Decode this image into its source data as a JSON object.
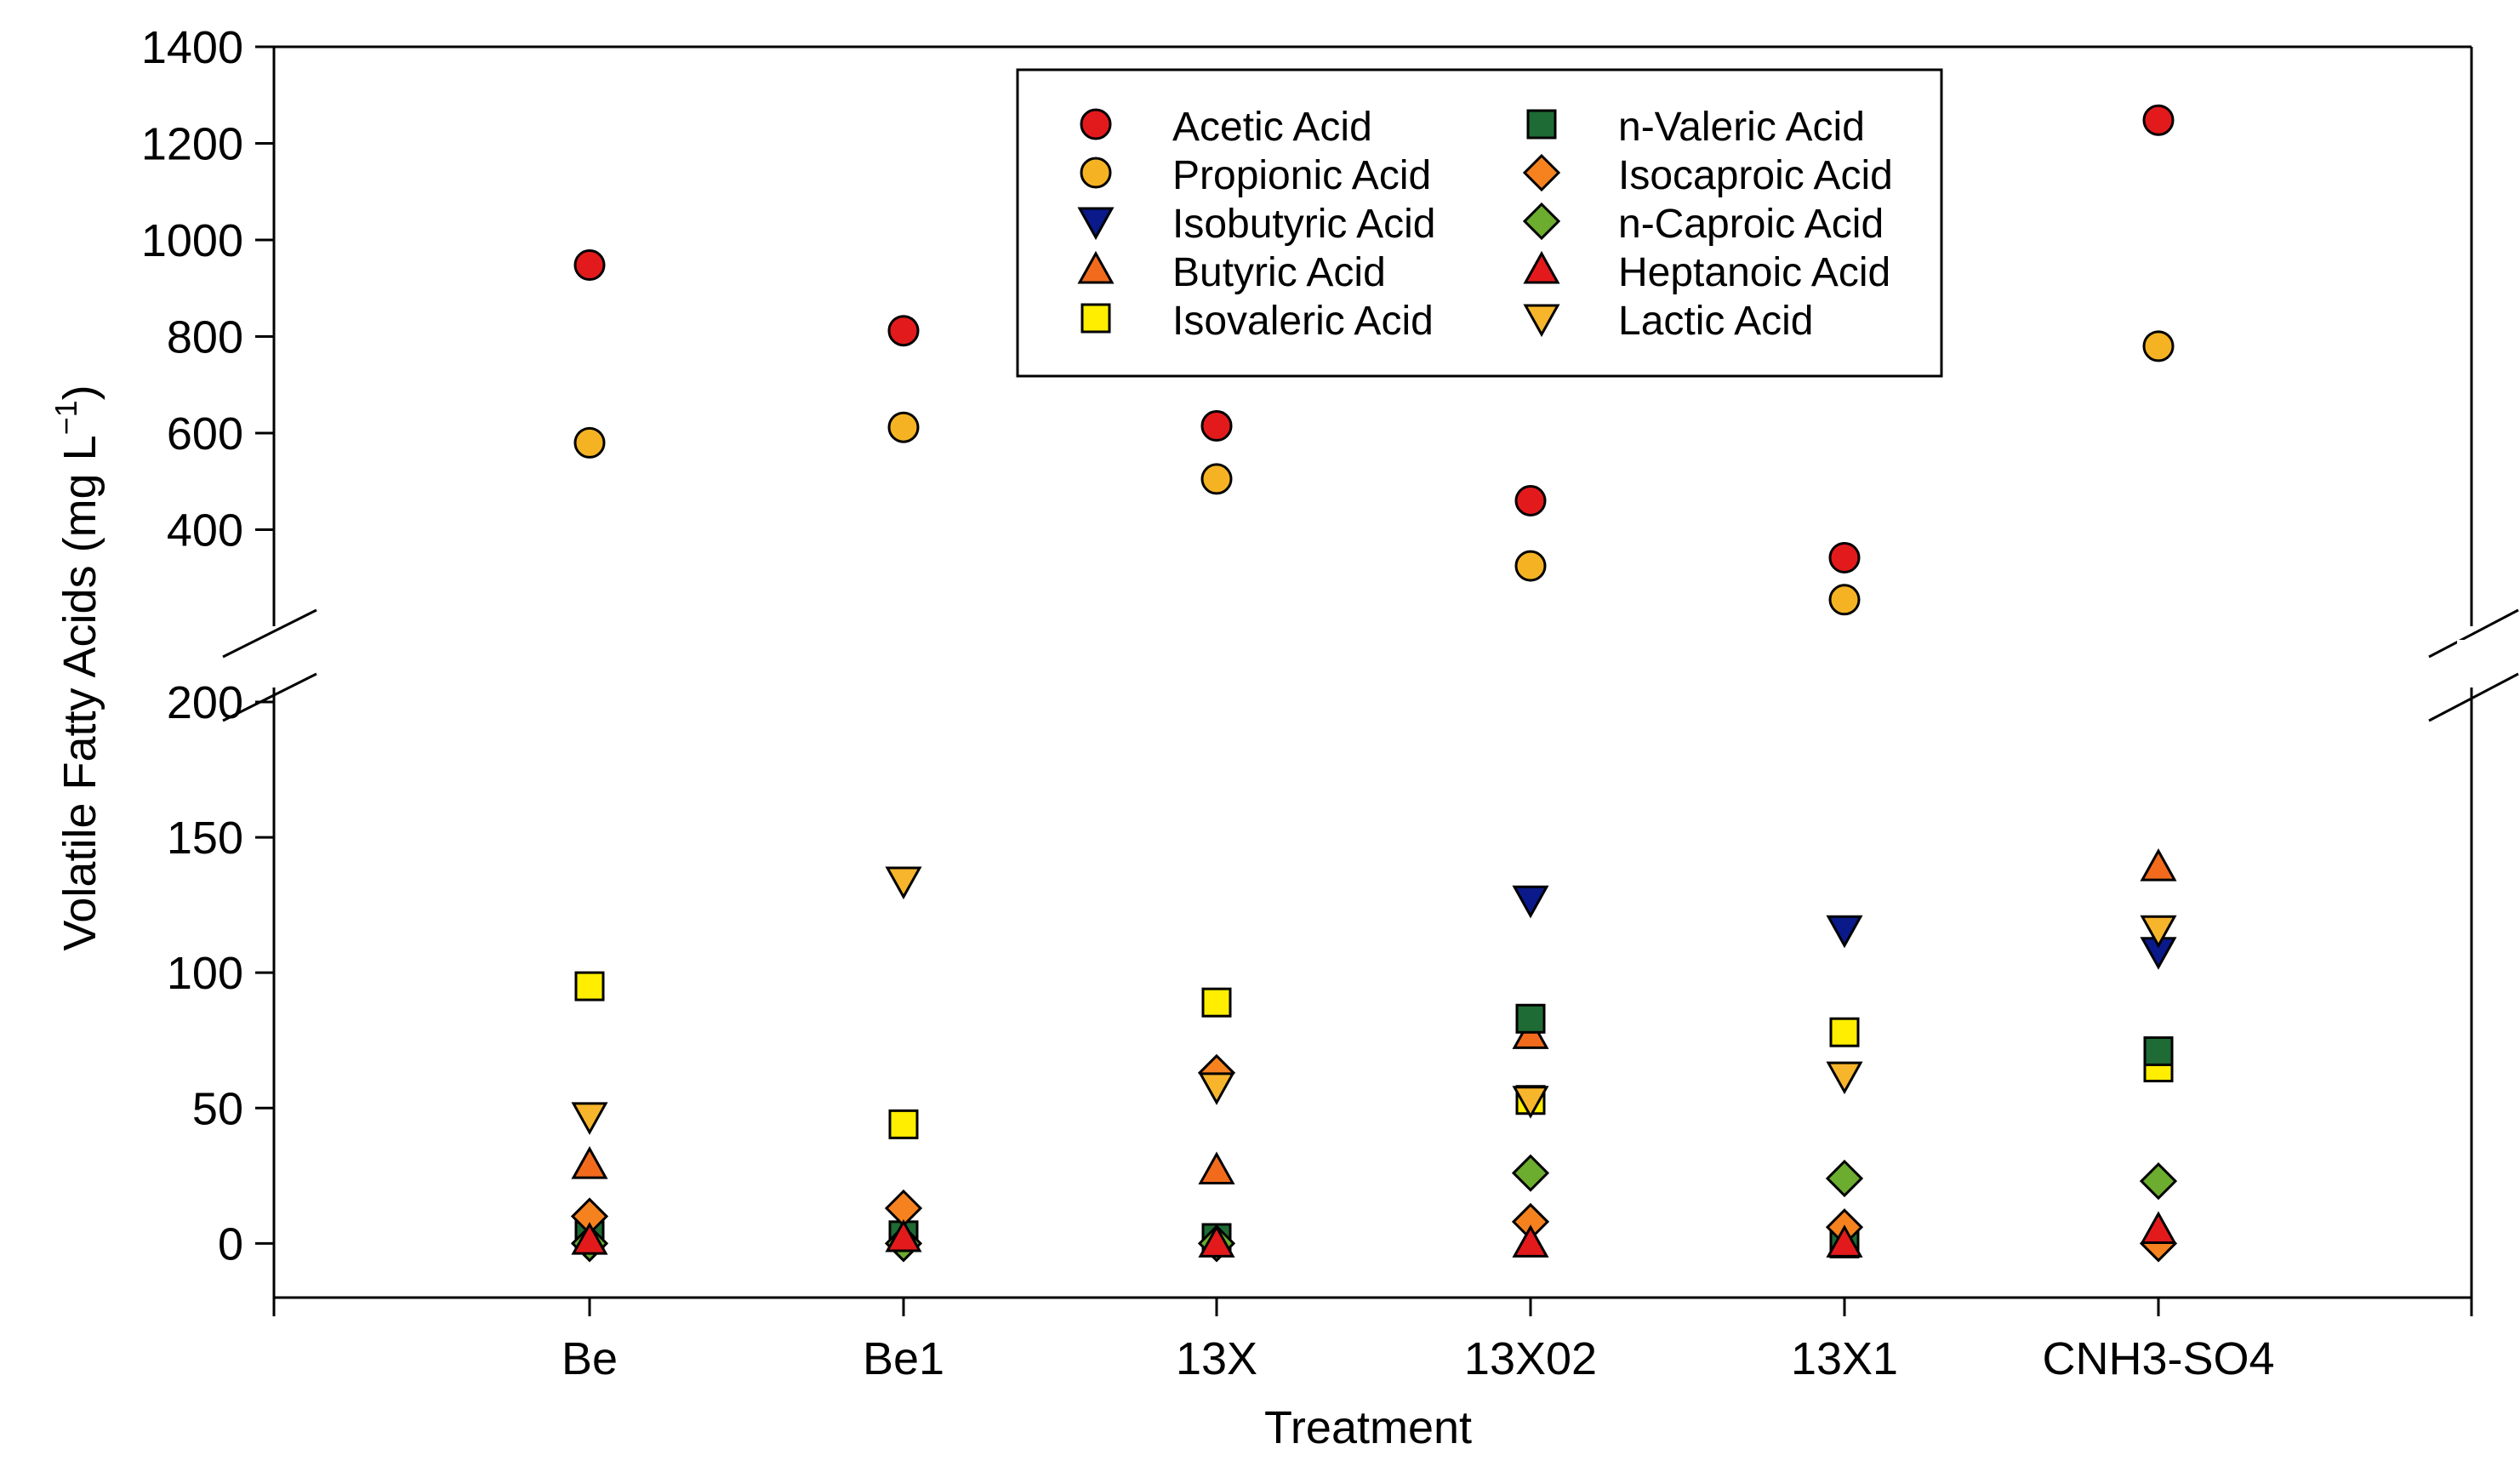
{
  "chart_data": {
    "type": "scatter",
    "title": "",
    "xlabel": "Treatment",
    "ylabel": "Volatile Fatty Acids (mg L",
    "ylabel_unit_superscript": "−1",
    "ylabel_close": ")",
    "categories": [
      "Be",
      "Be1",
      "13X",
      "13X02",
      "13X1",
      "CNH3-SO4"
    ],
    "axis_break": {
      "lower_range": [
        -20,
        200
      ],
      "upper_range": [
        230,
        1400
      ]
    },
    "yticks_lower": [
      0,
      50,
      100,
      150,
      200
    ],
    "yticks_upper": [
      400,
      600,
      800,
      1000,
      1200,
      1400
    ],
    "legend_position": "top-center",
    "series": [
      {
        "name": "Acetic Acid",
        "marker": "circle",
        "color": "#e31a1c",
        "values": [
          948,
          812,
          615,
          460,
          342,
          1248
        ]
      },
      {
        "name": "Propionic Acid",
        "marker": "circle",
        "color": "#f5b324",
        "values": [
          580,
          612,
          505,
          325,
          255,
          780
        ]
      },
      {
        "name": "Isobutyric Acid",
        "marker": "triangle-down",
        "color": "#0a1a8a",
        "values": [
          null,
          null,
          null,
          127,
          116,
          108
        ]
      },
      {
        "name": "Butyric Acid",
        "marker": "triangle-up",
        "color": "#f26b1d",
        "values": [
          29,
          null,
          27,
          77,
          null,
          139
        ]
      },
      {
        "name": "Isovaleric Acid",
        "marker": "square",
        "color": "#ffee00",
        "values": [
          95,
          44,
          89,
          53,
          78,
          65
        ]
      },
      {
        "name": "n-Valeric Acid",
        "marker": "square",
        "color": "#1e6b35",
        "values": [
          3,
          3,
          2,
          83,
          0,
          71
        ]
      },
      {
        "name": "Isocaproic Acid",
        "marker": "diamond",
        "color": "#f5821f",
        "values": [
          10,
          13,
          63,
          8,
          6,
          0
        ]
      },
      {
        "name": "n-Caproic Acid",
        "marker": "diamond",
        "color": "#6cac2e",
        "values": [
          0,
          0,
          0,
          26,
          24,
          23
        ]
      },
      {
        "name": "Heptanoic Acid",
        "marker": "triangle-up",
        "color": "#e31a1c",
        "values": [
          1,
          2,
          0,
          0,
          0,
          5
        ]
      },
      {
        "name": "Lactic Acid",
        "marker": "triangle-down",
        "color": "#f7b52c",
        "values": [
          47,
          134,
          58,
          53,
          62,
          116
        ]
      }
    ]
  }
}
